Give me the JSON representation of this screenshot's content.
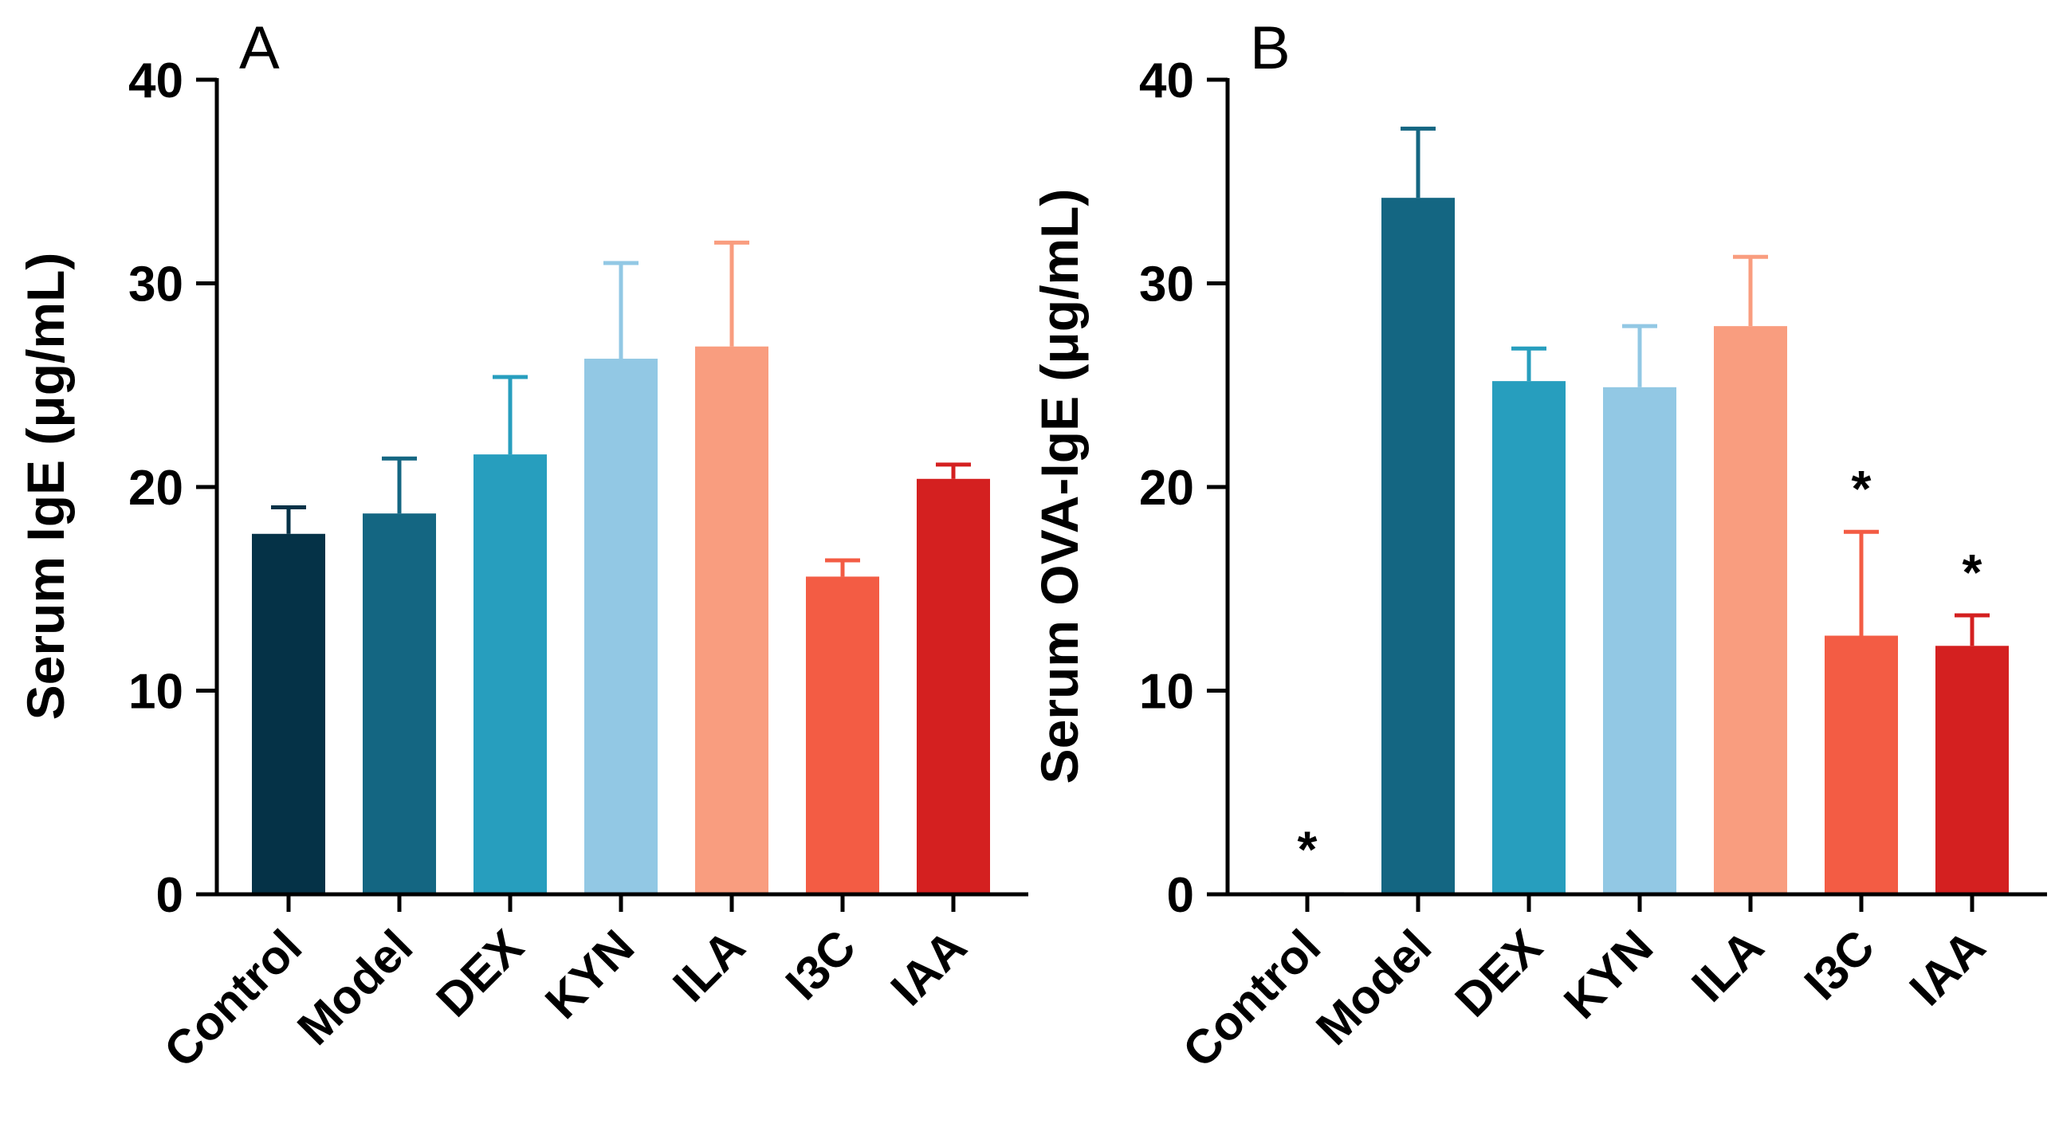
{
  "chart_data": [
    {
      "type": "bar",
      "panel_label": "A",
      "ylabel": "Serum IgE (μg/mL)",
      "ylim": [
        0,
        40
      ],
      "yticks": [
        "0",
        "10",
        "20",
        "30",
        "40"
      ],
      "categories": [
        "Control",
        "Model",
        "DEX",
        "KYN",
        "ILA",
        "I3C",
        "IAA"
      ],
      "values": [
        17.7,
        18.7,
        21.6,
        26.3,
        26.9,
        15.6,
        20.4
      ],
      "errors": [
        1.3,
        2.7,
        3.8,
        4.7,
        5.1,
        0.8,
        0.7
      ],
      "colors": [
        "#053247",
        "#146682",
        "#279ebe",
        "#92c8e4",
        "#f99d7f",
        "#f35c44",
        "#d42020"
      ],
      "annotations": [
        "",
        "",
        "",
        "",
        "",
        "",
        ""
      ]
    },
    {
      "type": "bar",
      "panel_label": "B",
      "ylabel": "Serum OVA-IgE (μg/mL)",
      "ylim": [
        0,
        40
      ],
      "yticks": [
        "0",
        "10",
        "20",
        "30",
        "40"
      ],
      "categories": [
        "Control",
        "Model",
        "DEX",
        "KYN",
        "ILA",
        "I3C",
        "IAA"
      ],
      "values": [
        0.1,
        34.2,
        25.2,
        24.9,
        27.9,
        12.7,
        12.2
      ],
      "errors": [
        0,
        3.4,
        1.6,
        3.0,
        3.4,
        5.1,
        1.5
      ],
      "colors": [
        "#053247",
        "#146682",
        "#279ebe",
        "#92c8e4",
        "#f99d7f",
        "#f35c44",
        "#d42020"
      ],
      "annotations": [
        "*",
        "",
        "",
        "",
        "",
        "*",
        "*"
      ]
    }
  ]
}
